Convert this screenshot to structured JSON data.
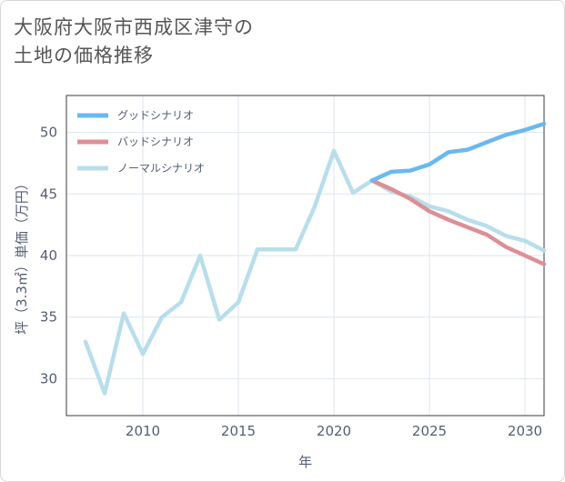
{
  "title": {
    "line1": "大阪府大阪市西成区津守の",
    "line2": "土地の価格推移"
  },
  "chart_data": {
    "type": "line",
    "xlabel": "年",
    "ylabel": "坪（3.3㎡）単価（万円）",
    "xlim": [
      2006,
      2031
    ],
    "ylim": [
      27,
      53
    ],
    "xticks": [
      2010,
      2015,
      2020,
      2025,
      2030
    ],
    "yticks": [
      30,
      35,
      40,
      45,
      50
    ],
    "grid": true,
    "legend_position": "top-left",
    "series": [
      {
        "name": "グッドシナリオ",
        "color": "#6bb8ef",
        "x": [
          2022,
          2023,
          2024,
          2025,
          2026,
          2027,
          2028,
          2029,
          2030,
          2031
        ],
        "values": [
          46.1,
          46.8,
          46.9,
          47.4,
          48.4,
          48.6,
          49.2,
          49.8,
          50.2,
          50.7
        ]
      },
      {
        "name": "バッドシナリオ",
        "color": "#dd8f96",
        "x": [
          2022,
          2023,
          2024,
          2025,
          2026,
          2027,
          2028,
          2029,
          2030,
          2031
        ],
        "values": [
          46.1,
          45.4,
          44.6,
          43.6,
          42.9,
          42.3,
          41.7,
          40.7,
          40.0,
          39.3
        ]
      },
      {
        "name": "ノーマルシナリオ",
        "color": "#b9deeb",
        "x": [
          2007,
          2008,
          2009,
          2010,
          2011,
          2012,
          2013,
          2014,
          2015,
          2016,
          2017,
          2018,
          2019,
          2020,
          2021,
          2022,
          2023,
          2024,
          2025,
          2026,
          2027,
          2028,
          2029,
          2030,
          2031
        ],
        "values": [
          33.0,
          28.8,
          35.3,
          32.0,
          35.0,
          36.2,
          40.0,
          34.8,
          36.2,
          40.5,
          40.5,
          40.5,
          44.0,
          48.5,
          45.1,
          46.1,
          45.2,
          44.8,
          44.0,
          43.6,
          42.9,
          42.4,
          41.6,
          41.2,
          40.4
        ]
      }
    ]
  }
}
